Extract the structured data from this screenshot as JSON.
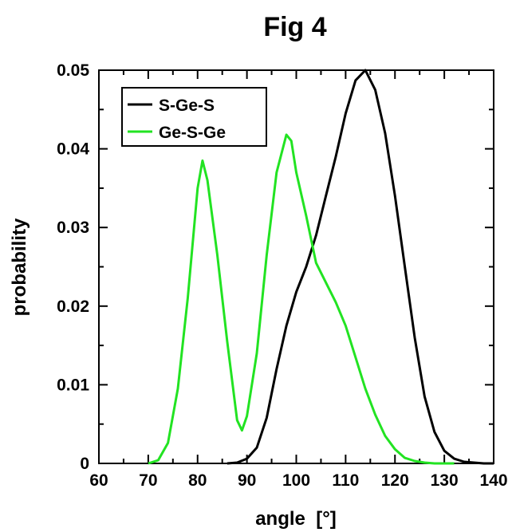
{
  "figure_title": "Fig 4",
  "chart_data": {
    "type": "line",
    "title": "Fig 4",
    "xlabel": "angle  [°]",
    "ylabel": "probability",
    "xlim": [
      60,
      140
    ],
    "ylim": [
      0,
      0.05
    ],
    "x_ticks": [
      "60",
      "70",
      "80",
      "90",
      "100",
      "110",
      "120",
      "130",
      "140"
    ],
    "y_ticks": [
      "0",
      "0.01",
      "0.02",
      "0.03",
      "0.04",
      "0.05"
    ],
    "legend_position": "top-left",
    "grid": false,
    "series": [
      {
        "name": "S-Ge-S",
        "color": "#000000",
        "x": [
          86,
          88,
          90,
          92,
          94,
          96,
          98,
          100,
          102,
          104,
          106,
          108,
          110,
          112,
          114,
          116,
          118,
          120,
          122,
          124,
          126,
          128,
          130,
          132,
          134,
          136,
          138,
          140
        ],
        "y": [
          0.0,
          0.0001,
          0.0006,
          0.002,
          0.0058,
          0.012,
          0.0175,
          0.0218,
          0.025,
          0.029,
          0.034,
          0.039,
          0.0445,
          0.0487,
          0.05,
          0.0475,
          0.042,
          0.034,
          0.025,
          0.016,
          0.0085,
          0.004,
          0.0016,
          0.0006,
          0.0002,
          0.0001,
          0.0,
          0.0
        ]
      },
      {
        "name": "Ge-S-Ge",
        "color": "#22e322",
        "x": [
          70,
          72,
          74,
          76,
          78,
          80,
          81,
          82,
          84,
          86,
          88,
          89,
          90,
          92,
          94,
          96,
          98,
          99,
          100,
          102,
          104,
          106,
          108,
          110,
          112,
          114,
          116,
          118,
          120,
          122,
          124,
          126,
          128,
          130,
          132
        ],
        "y": [
          0.0,
          0.0004,
          0.0026,
          0.0095,
          0.021,
          0.035,
          0.0385,
          0.036,
          0.0265,
          0.0155,
          0.0055,
          0.0042,
          0.006,
          0.014,
          0.0265,
          0.037,
          0.0418,
          0.041,
          0.037,
          0.0315,
          0.0255,
          0.023,
          0.0205,
          0.0175,
          0.0135,
          0.0095,
          0.0062,
          0.0035,
          0.0018,
          0.0007,
          0.0003,
          0.0001,
          0.0,
          0.0,
          0.0
        ]
      }
    ]
  }
}
